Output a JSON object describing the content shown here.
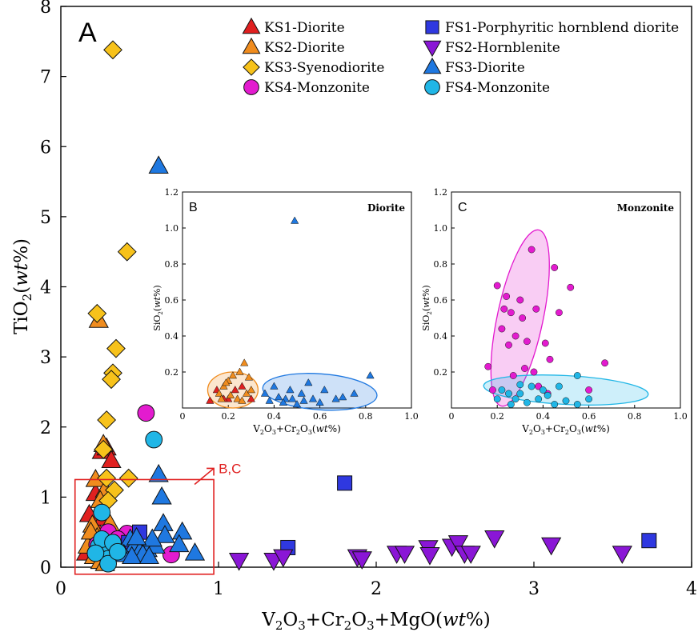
{
  "chart_data": [
    {
      "id": "main",
      "type": "scatter",
      "panel_label": "A",
      "xlabel": "V2O3+Cr2O3+MgO(wt%)",
      "ylabel": "TiO2(wt%)",
      "xlim": [
        0,
        4
      ],
      "ylim": [
        0,
        8
      ],
      "xticks": [
        0,
        1,
        2,
        3,
        4
      ],
      "yticks": [
        0,
        1,
        2,
        3,
        4,
        5,
        6,
        7,
        8
      ],
      "zoom_box": {
        "x": [
          0.09,
          0.97
        ],
        "y": [
          -0.1,
          1.25
        ]
      },
      "zoom_annotation": "B,C",
      "legend": [
        {
          "key": "ks1",
          "label": "KS1-Diorite",
          "marker": "triangle-up",
          "color": "#e02020"
        },
        {
          "key": "ks2",
          "label": "KS2-Diorite",
          "marker": "triangle-up",
          "color": "#f08c1e"
        },
        {
          "key": "ks3",
          "label": "KS3-Syenodiorite",
          "marker": "diamond",
          "color": "#f7c21b"
        },
        {
          "key": "ks4",
          "label": "KS4-Monzonite",
          "marker": "circle",
          "color": "#e31bcf"
        },
        {
          "key": "fs1",
          "label": "FS1-Porphyritic hornblend diorite",
          "marker": "square",
          "color": "#2f38e0"
        },
        {
          "key": "fs2",
          "label": "FS2-Hornblenite",
          "marker": "triangle-down",
          "color": "#8a16d6"
        },
        {
          "key": "fs3",
          "label": "FS3-Diorite",
          "marker": "triangle-up",
          "color": "#1f78e0"
        },
        {
          "key": "fs4",
          "label": "FS4-Monzonite",
          "marker": "circle",
          "color": "#20b6e6"
        }
      ],
      "series": [
        {
          "key": "ks1",
          "points": [
            [
              0.18,
              0.75
            ],
            [
              0.22,
              1.05
            ],
            [
              0.26,
              1.65
            ],
            [
              0.29,
              1.7
            ],
            [
              0.32,
              1.52
            ],
            [
              0.21,
              0.4
            ],
            [
              0.24,
              0.5
            ],
            [
              0.2,
              0.32
            ],
            [
              0.33,
              0.28
            ],
            [
              0.16,
              0.2
            ],
            [
              0.27,
              0.7
            ]
          ]
        },
        {
          "key": "ks2",
          "points": [
            [
              0.24,
              3.52
            ],
            [
              0.27,
              1.75
            ],
            [
              0.22,
              1.25
            ],
            [
              0.28,
              1.1
            ],
            [
              0.25,
              0.95
            ],
            [
              0.2,
              0.6
            ],
            [
              0.23,
              0.42
            ],
            [
              0.27,
              0.35
            ],
            [
              0.31,
              0.62
            ],
            [
              0.17,
              0.3
            ],
            [
              0.3,
              0.22
            ],
            [
              0.21,
              0.15
            ],
            [
              0.25,
              0.08
            ],
            [
              0.28,
              0.05
            ],
            [
              0.33,
              0.45
            ],
            [
              0.19,
              0.5
            ],
            [
              0.26,
              0.25
            ]
          ]
        },
        {
          "key": "ks3",
          "points": [
            [
              0.33,
              7.38
            ],
            [
              0.42,
              4.5
            ],
            [
              0.23,
              3.62
            ],
            [
              0.35,
              3.12
            ],
            [
              0.33,
              2.77
            ],
            [
              0.32,
              2.68
            ],
            [
              0.29,
              2.1
            ],
            [
              0.27,
              1.68
            ],
            [
              0.29,
              1.27
            ],
            [
              0.43,
              1.27
            ],
            [
              0.34,
              1.1
            ],
            [
              0.3,
              0.95
            ]
          ]
        },
        {
          "key": "ks4",
          "points": [
            [
              0.54,
              2.2
            ],
            [
              0.3,
              0.5
            ],
            [
              0.42,
              0.48
            ],
            [
              0.36,
              0.4
            ],
            [
              0.7,
              0.18
            ],
            [
              0.28,
              0.3
            ],
            [
              0.5,
              0.25
            ],
            [
              0.23,
              0.32
            ]
          ]
        },
        {
          "key": "fs1",
          "points": [
            [
              1.44,
              0.28
            ],
            [
              1.8,
              1.2
            ],
            [
              3.73,
              0.38
            ],
            [
              0.5,
              0.5
            ],
            [
              0.43,
              0.35
            ]
          ]
        },
        {
          "key": "fs2",
          "points": [
            [
              1.13,
              0.1
            ],
            [
              1.35,
              0.1
            ],
            [
              1.41,
              0.15
            ],
            [
              1.88,
              0.15
            ],
            [
              1.91,
              0.12
            ],
            [
              2.13,
              0.2
            ],
            [
              2.18,
              0.2
            ],
            [
              2.33,
              0.28
            ],
            [
              2.34,
              0.18
            ],
            [
              2.48,
              0.3
            ],
            [
              2.52,
              0.35
            ],
            [
              2.56,
              0.2
            ],
            [
              2.6,
              0.2
            ],
            [
              2.75,
              0.42
            ],
            [
              3.11,
              0.32
            ],
            [
              3.56,
              0.2
            ]
          ]
        },
        {
          "key": "fs3",
          "points": [
            [
              0.62,
              5.72
            ],
            [
              0.62,
              1.32
            ],
            [
              0.64,
              1.0
            ],
            [
              0.65,
              0.62
            ],
            [
              0.66,
              0.45
            ],
            [
              0.77,
              0.5
            ],
            [
              0.75,
              0.32
            ],
            [
              0.85,
              0.2
            ],
            [
              0.44,
              0.4
            ],
            [
              0.47,
              0.32
            ],
            [
              0.5,
              0.22
            ],
            [
              0.55,
              0.25
            ],
            [
              0.6,
              0.3
            ],
            [
              0.52,
              0.18
            ],
            [
              0.4,
              0.18
            ],
            [
              0.36,
              0.3
            ],
            [
              0.45,
              0.15
            ],
            [
              0.58,
              0.4
            ],
            [
              0.56,
              0.15
            ],
            [
              0.48,
              0.42
            ]
          ]
        },
        {
          "key": "fs4",
          "points": [
            [
              0.59,
              1.82
            ],
            [
              0.26,
              0.78
            ],
            [
              0.24,
              0.3
            ],
            [
              0.27,
              0.28
            ],
            [
              0.3,
              0.25
            ],
            [
              0.3,
              0.12
            ],
            [
              0.3,
              0.05
            ],
            [
              0.26,
              0.4
            ],
            [
              0.22,
              0.2
            ],
            [
              0.33,
              0.35
            ],
            [
              0.36,
              0.22
            ]
          ]
        }
      ]
    },
    {
      "id": "B",
      "type": "scatter",
      "panel_label": "B",
      "title": "Diorite",
      "xlabel": "V2O3+Cr2O3(wt%)",
      "ylabel": "SiO2(wt%)",
      "xlim": [
        0,
        1.0
      ],
      "ylim": [
        0,
        1.2
      ],
      "xticks": [
        0,
        0.2,
        0.4,
        0.6,
        0.8,
        1.0
      ],
      "xtick_labels": [
        "0",
        "0.2",
        "0.4",
        "0.6",
        "0.8",
        "1.0"
      ],
      "yticks": [
        0.2,
        0.4,
        0.6,
        0.8,
        1.0,
        1.2
      ],
      "ytick_labels": [
        "0.2",
        "0.4",
        "0.6",
        "0.8",
        "1.0",
        "1.2"
      ],
      "ellipses": [
        {
          "color": "#f08c1e",
          "cx": 0.22,
          "cy": 0.1,
          "rx": 0.11,
          "ry": 0.1,
          "angle": 0
        },
        {
          "color": "#1f78e0",
          "cx": 0.6,
          "cy": 0.09,
          "rx": 0.25,
          "ry": 0.1,
          "angle": 4
        }
      ],
      "series": [
        {
          "key": "ks1",
          "points": [
            [
              0.15,
              0.1
            ],
            [
              0.2,
              0.05
            ],
            [
              0.26,
              0.12
            ],
            [
              0.18,
              0.05
            ],
            [
              0.23,
              0.1
            ],
            [
              0.3,
              0.05
            ],
            [
              0.12,
              0.04
            ]
          ]
        },
        {
          "key": "ks2",
          "points": [
            [
              0.2,
              0.15
            ],
            [
              0.25,
              0.2
            ],
            [
              0.27,
              0.25
            ],
            [
              0.22,
              0.18
            ],
            [
              0.18,
              0.12
            ],
            [
              0.28,
              0.08
            ],
            [
              0.24,
              0.05
            ],
            [
              0.16,
              0.08
            ],
            [
              0.3,
              0.1
            ],
            [
              0.21,
              0.07
            ],
            [
              0.26,
              0.04
            ],
            [
              0.19,
              0.14
            ],
            [
              0.29,
              0.17
            ],
            [
              0.17,
              0.05
            ]
          ]
        },
        {
          "key": "fs3",
          "points": [
            [
              0.49,
              1.04
            ],
            [
              0.82,
              0.18
            ],
            [
              0.75,
              0.08
            ],
            [
              0.67,
              0.05
            ],
            [
              0.62,
              0.1
            ],
            [
              0.57,
              0.05
            ],
            [
              0.55,
              0.14
            ],
            [
              0.52,
              0.08
            ],
            [
              0.5,
              0.02
            ],
            [
              0.47,
              0.1
            ],
            [
              0.45,
              0.05
            ],
            [
              0.42,
              0.06
            ],
            [
              0.4,
              0.12
            ],
            [
              0.38,
              0.04
            ],
            [
              0.36,
              0.08
            ],
            [
              0.44,
              0.03
            ],
            [
              0.53,
              0.04
            ],
            [
              0.6,
              0.03
            ],
            [
              0.7,
              0.06
            ],
            [
              0.48,
              0.05
            ]
          ]
        }
      ]
    },
    {
      "id": "C",
      "type": "scatter",
      "panel_label": "C",
      "title": "Monzonite",
      "xlabel": "V2O3+Cr2O3(wt%)",
      "ylabel": "SiO2(wt%)",
      "xlim": [
        0,
        1.0
      ],
      "ylim": [
        0,
        1.2
      ],
      "xticks": [
        0,
        0.2,
        0.4,
        0.6,
        0.8,
        1.0
      ],
      "xtick_labels": [
        "0",
        "0.2",
        "0.4",
        "0.6",
        "0.8",
        "1.0"
      ],
      "yticks": [
        0.2,
        0.4,
        0.6,
        0.8,
        1.0,
        1.2
      ],
      "ytick_labels": [
        "0.2",
        "0.4",
        "0.6",
        "0.8",
        "1.0",
        "1.2"
      ],
      "ellipses": [
        {
          "color": "#e31bcf",
          "cx": 0.3,
          "cy": 0.5,
          "rx": 0.1,
          "ry": 0.5,
          "angle": 12
        },
        {
          "color": "#20b6e6",
          "cx": 0.5,
          "cy": 0.1,
          "rx": 0.36,
          "ry": 0.08,
          "angle": 3
        }
      ],
      "series": [
        {
          "key": "ks4",
          "points": [
            [
              0.16,
              0.23
            ],
            [
              0.2,
              0.68
            ],
            [
              0.23,
              0.55
            ],
            [
              0.24,
              0.62
            ],
            [
              0.26,
              0.53
            ],
            [
              0.22,
              0.44
            ],
            [
              0.25,
              0.35
            ],
            [
              0.3,
              0.6
            ],
            [
              0.28,
              0.4
            ],
            [
              0.32,
              0.22
            ],
            [
              0.35,
              0.88
            ],
            [
              0.37,
              0.55
            ],
            [
              0.41,
              0.36
            ],
            [
              0.45,
              0.78
            ],
            [
              0.52,
              0.67
            ],
            [
              0.47,
              0.53
            ],
            [
              0.43,
              0.27
            ],
            [
              0.33,
              0.37
            ],
            [
              0.31,
              0.5
            ],
            [
              0.38,
              0.12
            ],
            [
              0.42,
              0.08
            ],
            [
              0.36,
              0.2
            ],
            [
              0.67,
              0.25
            ],
            [
              0.6,
              0.1
            ],
            [
              0.27,
              0.18
            ],
            [
              0.18,
              0.1
            ]
          ]
        },
        {
          "key": "fs4",
          "points": [
            [
              0.55,
              0.18
            ],
            [
              0.47,
              0.12
            ],
            [
              0.35,
              0.12
            ],
            [
              0.3,
              0.08
            ],
            [
              0.25,
              0.08
            ],
            [
              0.2,
              0.05
            ],
            [
              0.22,
              0.1
            ],
            [
              0.28,
              0.05
            ],
            [
              0.33,
              0.03
            ],
            [
              0.38,
              0.05
            ],
            [
              0.42,
              0.07
            ],
            [
              0.5,
              0.04
            ],
            [
              0.55,
              0.02
            ],
            [
              0.6,
              0.05
            ],
            [
              0.26,
              0.02
            ],
            [
              0.45,
              0.02
            ],
            [
              0.4,
              0.1
            ],
            [
              0.3,
              0.13
            ]
          ]
        }
      ]
    }
  ]
}
